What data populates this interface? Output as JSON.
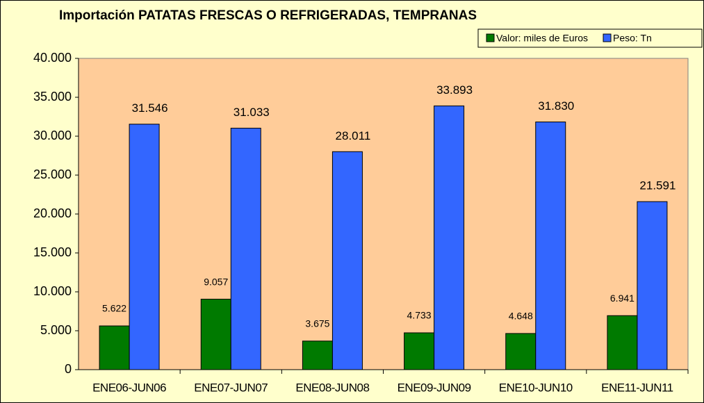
{
  "chart_data": {
    "type": "bar",
    "title": "Importación PATATAS FRESCAS O REFRIGERADAS, TEMPRANAS",
    "categories": [
      "ENE06-JUN06",
      "ENE07-JUN07",
      "ENE08-JUN08",
      "ENE09-JUN09",
      "ENE10-JUN10",
      "ENE11-JUN11"
    ],
    "series": [
      {
        "name": "Valor: miles de Euros",
        "color": "#007a00",
        "values": [
          5622,
          9057,
          3675,
          4733,
          4648,
          6941
        ],
        "value_labels": [
          "5.622",
          "9.057",
          "3.675",
          "4.733",
          "4.648",
          "6.941"
        ]
      },
      {
        "name": "Peso: Tn",
        "color": "#3366ff",
        "values": [
          31546,
          31033,
          28011,
          33893,
          31830,
          21591
        ],
        "value_labels": [
          "31.546",
          "31.033",
          "28.011",
          "33.893",
          "31.830",
          "21.591"
        ]
      }
    ],
    "ylim": [
      0,
      40000
    ],
    "yticks": [
      0,
      {
        "value": 5000,
        "label": "5.000"
      },
      {
        "value": 10000,
        "label": "10.000"
      },
      {
        "value": 15000,
        "label": "15.000"
      },
      {
        "value": 20000,
        "label": "20.000"
      },
      {
        "value": 25000,
        "label": "25.000"
      },
      {
        "value": 30000,
        "label": "30.000"
      },
      {
        "value": 35000,
        "label": "35.000"
      },
      {
        "value": 40000,
        "label": "40.000"
      }
    ],
    "grid": false,
    "legend": "top-right"
  }
}
